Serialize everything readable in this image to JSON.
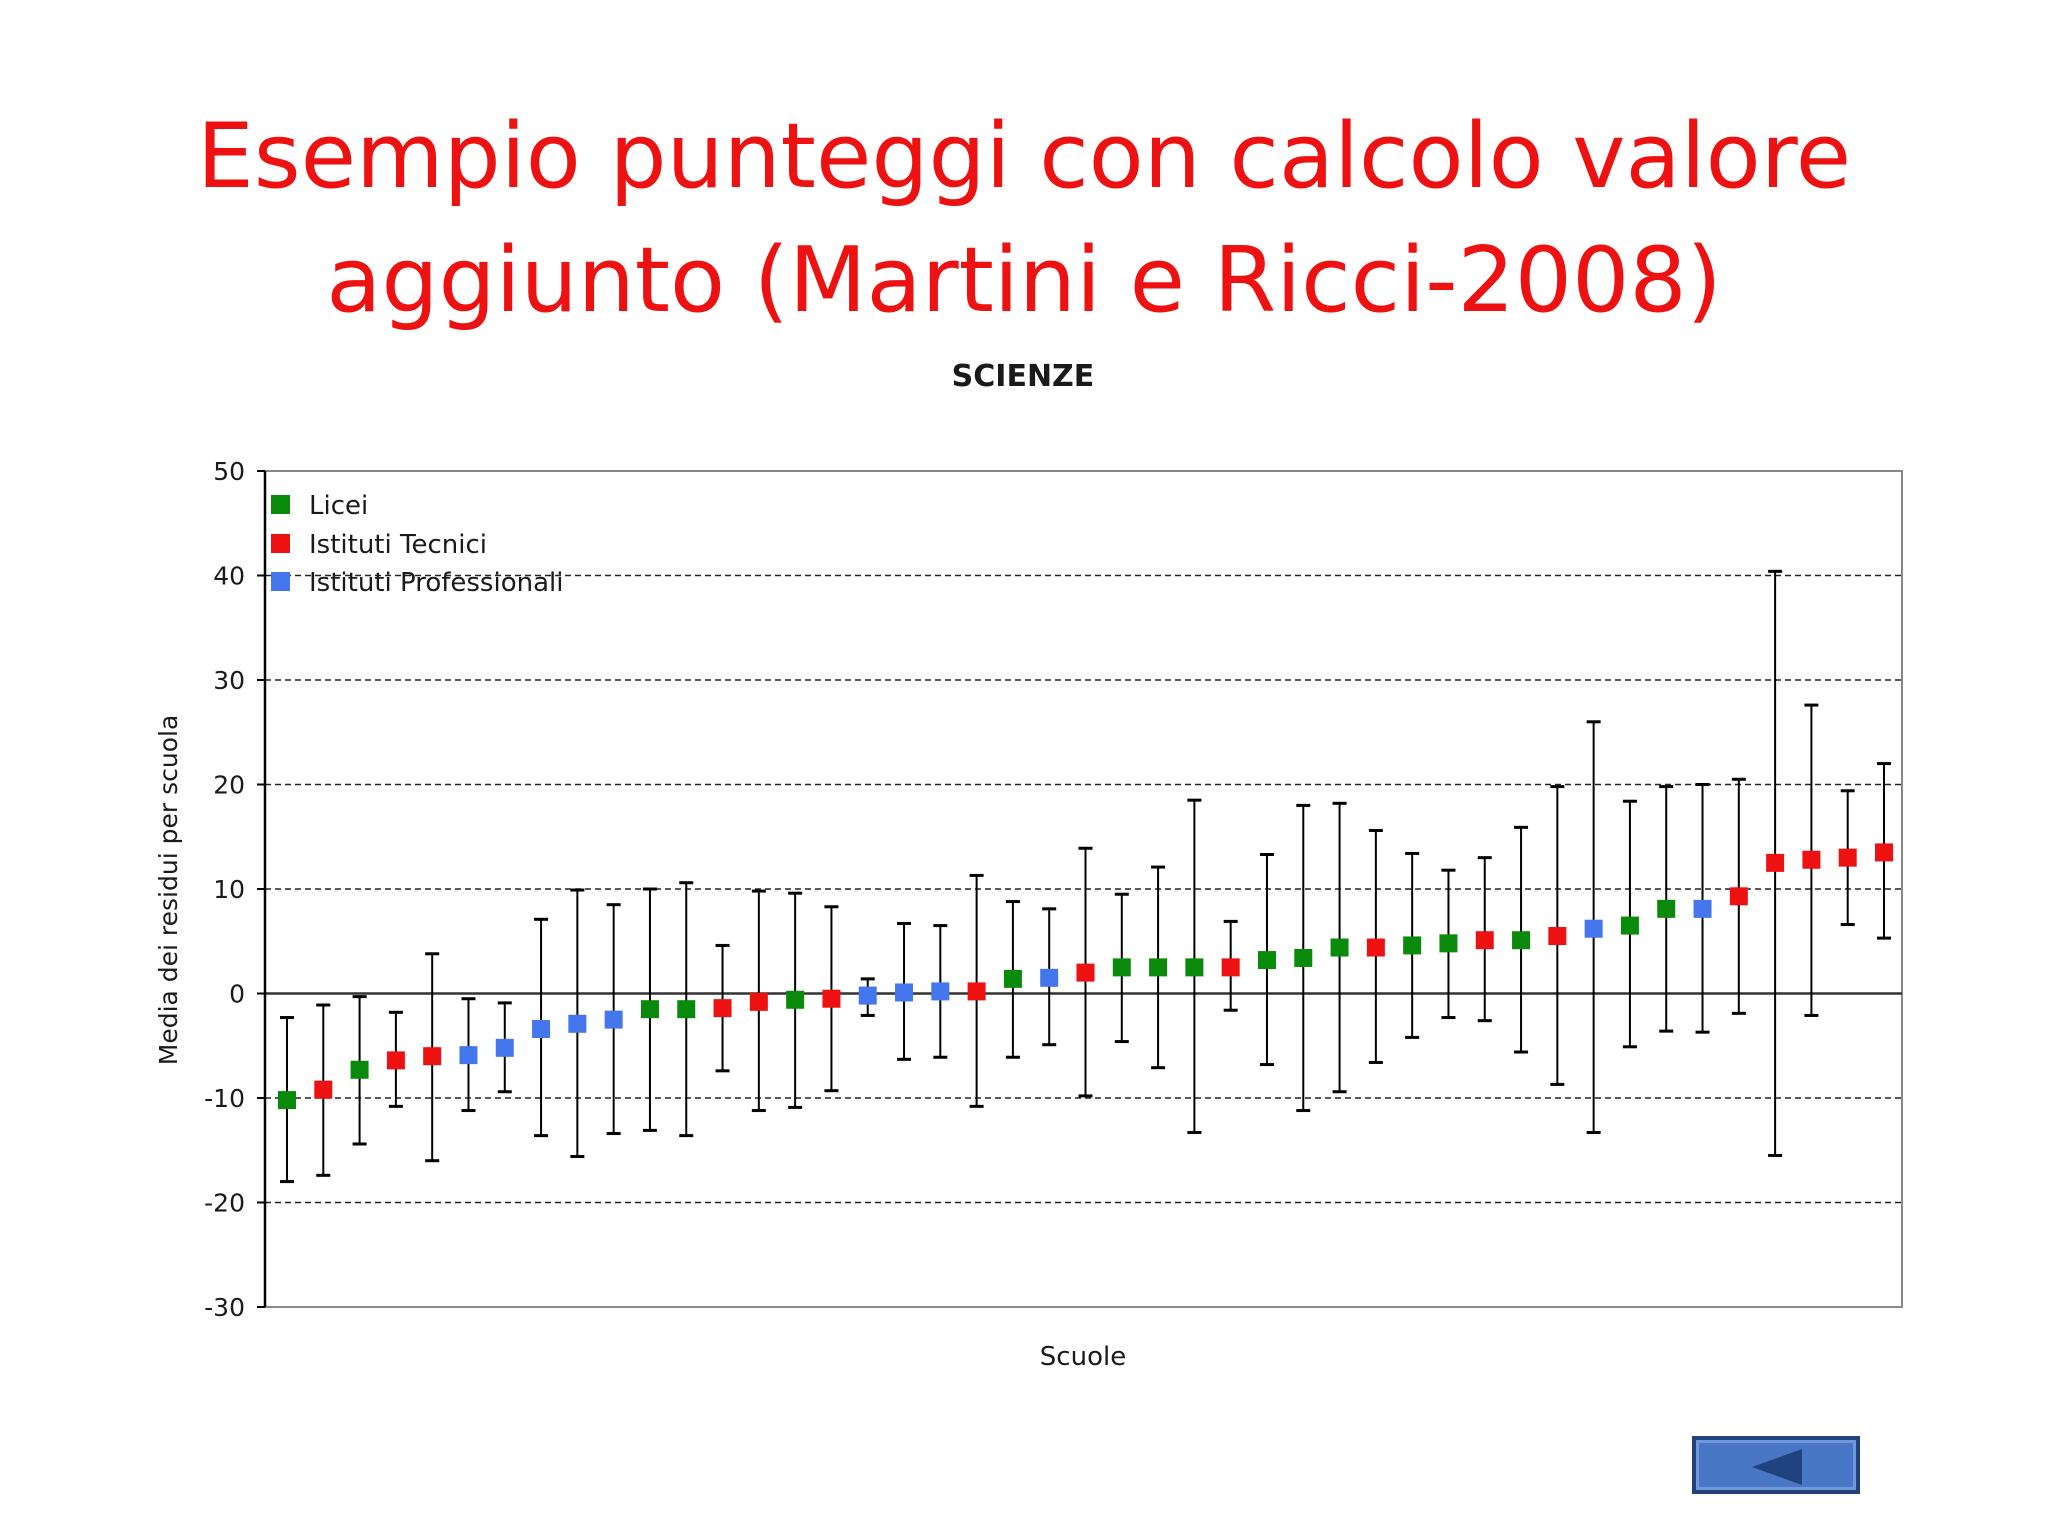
{
  "slide": {
    "title_line1": "Esempio punteggi con calcolo valore",
    "title_line2": "aggiunto (Martini e Ricci-2008)"
  },
  "nav": {
    "back_icon": "left-triangle-icon"
  },
  "colors": {
    "title": "#ee1111",
    "Licei": "#0a8a0a",
    "Istituti Tecnici": "#ee1111",
    "Istituti Professionali": "#4477ee",
    "button": "#4a77c5"
  },
  "chart_data": {
    "type": "scatter",
    "title": "SCIENZE",
    "xlabel": "Scuole",
    "ylabel": "Media dei residui per scuola",
    "ylim": [
      -30,
      50
    ],
    "yticks": [
      50,
      40,
      30,
      20,
      10,
      0,
      -10,
      -20,
      -30
    ],
    "ytick_labels": [
      "50",
      "40",
      "30",
      "20",
      "10",
      "0",
      "-10",
      "-20",
      "-30"
    ],
    "grid": "dashed horizontal at 40, 30, 20, 10, -10, -20",
    "legend": {
      "placement": "top-left",
      "entries": [
        "Licei",
        "Istituti Tecnici",
        "Istituti Professionali"
      ]
    },
    "error_bars": true,
    "points": [
      {
        "group": "Licei",
        "y": -10.2,
        "low": -18.0,
        "high": -2.3
      },
      {
        "group": "Istituti Tecnici",
        "y": -9.2,
        "low": -17.4,
        "high": -1.1
      },
      {
        "group": "Licei",
        "y": -7.3,
        "low": -14.4,
        "high": -0.3
      },
      {
        "group": "Istituti Tecnici",
        "y": -6.4,
        "low": -10.8,
        "high": -1.8
      },
      {
        "group": "Istituti Tecnici",
        "y": -6.0,
        "low": -16.0,
        "high": 3.8
      },
      {
        "group": "Istituti Professionali",
        "y": -5.9,
        "low": -11.2,
        "high": -0.5
      },
      {
        "group": "Istituti Professionali",
        "y": -5.2,
        "low": -9.4,
        "high": -0.9
      },
      {
        "group": "Istituti Professionali",
        "y": -3.4,
        "low": -13.6,
        "high": 7.1
      },
      {
        "group": "Istituti Professionali",
        "y": -2.9,
        "low": -15.6,
        "high": 9.9
      },
      {
        "group": "Istituti Professionali",
        "y": -2.5,
        "low": -13.4,
        "high": 8.5
      },
      {
        "group": "Licei",
        "y": -1.5,
        "low": -13.1,
        "high": 10.0
      },
      {
        "group": "Licei",
        "y": -1.5,
        "low": -13.6,
        "high": 10.6
      },
      {
        "group": "Istituti Tecnici",
        "y": -1.4,
        "low": -7.4,
        "high": 4.6
      },
      {
        "group": "Istituti Tecnici",
        "y": -0.8,
        "low": -11.2,
        "high": 9.8
      },
      {
        "group": "Licei",
        "y": -0.6,
        "low": -10.9,
        "high": 9.6
      },
      {
        "group": "Istituti Tecnici",
        "y": -0.5,
        "low": -9.3,
        "high": 8.3
      },
      {
        "group": "Istituti Professionali",
        "y": -0.2,
        "low": -2.1,
        "high": 1.4
      },
      {
        "group": "Istituti Professionali",
        "y": 0.1,
        "low": -6.3,
        "high": 6.7
      },
      {
        "group": "Istituti Professionali",
        "y": 0.2,
        "low": -6.1,
        "high": 6.5
      },
      {
        "group": "Istituti Tecnici",
        "y": 0.2,
        "low": -10.8,
        "high": 11.3
      },
      {
        "group": "Licei",
        "y": 1.4,
        "low": -6.1,
        "high": 8.8
      },
      {
        "group": "Istituti Professionali",
        "y": 1.5,
        "low": -4.9,
        "high": 8.1
      },
      {
        "group": "Istituti Tecnici",
        "y": 2.0,
        "low": -9.8,
        "high": 13.9
      },
      {
        "group": "Licei",
        "y": 2.5,
        "low": -4.6,
        "high": 9.5
      },
      {
        "group": "Licei",
        "y": 2.5,
        "low": -7.1,
        "high": 12.1
      },
      {
        "group": "Licei",
        "y": 2.5,
        "low": -13.3,
        "high": 18.5
      },
      {
        "group": "Istituti Tecnici",
        "y": 2.5,
        "low": -1.6,
        "high": 6.9
      },
      {
        "group": "Licei",
        "y": 3.2,
        "low": -6.8,
        "high": 13.3
      },
      {
        "group": "Licei",
        "y": 3.4,
        "low": -11.2,
        "high": 18.0
      },
      {
        "group": "Licei",
        "y": 4.4,
        "low": -9.4,
        "high": 18.2
      },
      {
        "group": "Istituti Tecnici",
        "y": 4.4,
        "low": -6.6,
        "high": 15.6
      },
      {
        "group": "Licei",
        "y": 4.6,
        "low": -4.2,
        "high": 13.4
      },
      {
        "group": "Licei",
        "y": 4.8,
        "low": -2.3,
        "high": 11.8
      },
      {
        "group": "Istituti Tecnici",
        "y": 5.1,
        "low": -2.6,
        "high": 13.0
      },
      {
        "group": "Licei",
        "y": 5.1,
        "low": -5.6,
        "high": 15.9
      },
      {
        "group": "Istituti Tecnici",
        "y": 5.5,
        "low": -8.7,
        "high": 19.8
      },
      {
        "group": "Istituti Professionali",
        "y": 6.2,
        "low": -13.3,
        "high": 26.0
      },
      {
        "group": "Licei",
        "y": 6.5,
        "low": -5.1,
        "high": 18.4
      },
      {
        "group": "Licei",
        "y": 8.1,
        "low": -3.6,
        "high": 19.8
      },
      {
        "group": "Istituti Professionali",
        "y": 8.1,
        "low": -3.7,
        "high": 20.0
      },
      {
        "group": "Istituti Tecnici",
        "y": 9.3,
        "low": -1.9,
        "high": 20.5
      },
      {
        "group": "Istituti Tecnici",
        "y": 12.5,
        "low": -15.5,
        "high": 40.4
      },
      {
        "group": "Istituti Tecnici",
        "y": 12.8,
        "low": -2.1,
        "high": 27.6
      },
      {
        "group": "Istituti Tecnici",
        "y": 13.0,
        "low": 6.6,
        "high": 19.4
      },
      {
        "group": "Istituti Tecnici",
        "y": 13.5,
        "low": 5.3,
        "high": 22.0
      }
    ]
  }
}
